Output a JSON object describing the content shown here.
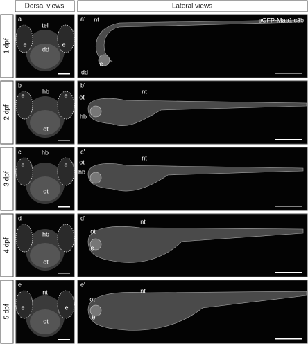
{
  "headers": {
    "dorsal": "Dorsal views",
    "lateral": "Lateral views"
  },
  "marker": "eGFP-Map1lc3b",
  "rows": [
    {
      "stage": "1 dpf",
      "dorsal": {
        "panel": "a",
        "labels": [
          "tel",
          "e",
          "dd",
          "e"
        ]
      },
      "lateral": {
        "panel": "a'",
        "labels": [
          "nt",
          "e",
          "dd"
        ]
      }
    },
    {
      "stage": "2 dpf",
      "dorsal": {
        "panel": "b",
        "labels": [
          "hb",
          "e",
          "e",
          "ot"
        ]
      },
      "lateral": {
        "panel": "b'",
        "labels": [
          "ot",
          "hb",
          "nt"
        ]
      }
    },
    {
      "stage": "3 dpf",
      "dorsal": {
        "panel": "c",
        "labels": [
          "hb",
          "e",
          "e",
          "ot"
        ]
      },
      "lateral": {
        "panel": "c'",
        "labels": [
          "ot",
          "hb",
          "nt"
        ]
      }
    },
    {
      "stage": "4 dpf",
      "dorsal": {
        "panel": "d",
        "labels": [
          "hb",
          "ot"
        ]
      },
      "lateral": {
        "panel": "d'",
        "labels": [
          "ot",
          "nt",
          "e"
        ]
      }
    },
    {
      "stage": "5 dpf",
      "dorsal": {
        "panel": "e",
        "labels": [
          "nt",
          "e",
          "e",
          "ot"
        ]
      },
      "lateral": {
        "panel": "e'",
        "labels": [
          "ot",
          "nt",
          "e"
        ]
      }
    }
  ]
}
